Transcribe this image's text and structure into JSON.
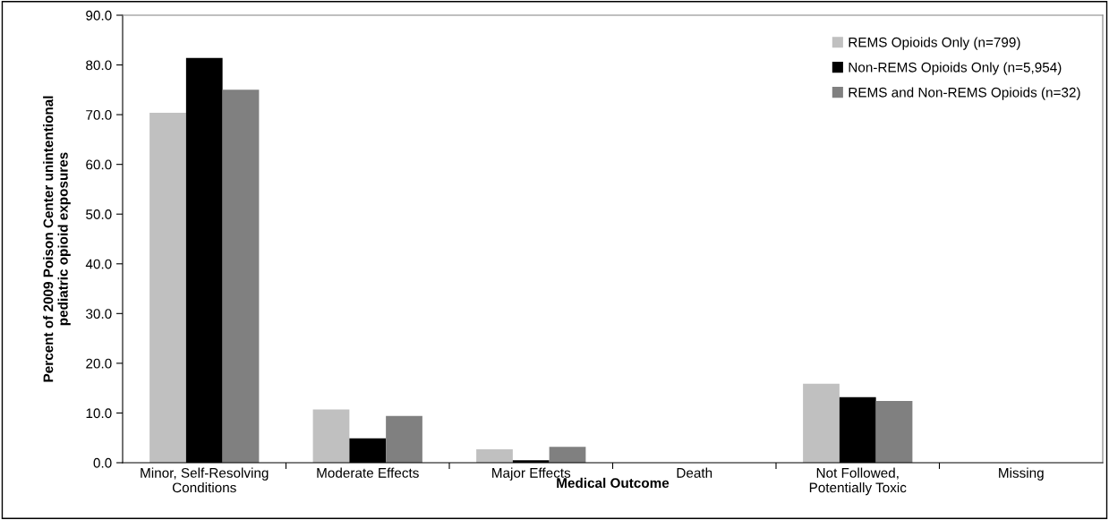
{
  "chart_data": {
    "type": "bar",
    "xlabel": "Medical Outcome",
    "ylabel": "Percent of 2009 Poison Center unintentional\npediatric opioid exposures",
    "categories": [
      "Minor, Self-Resolving\nConditions",
      "Moderate Effects",
      "Major Effects",
      "Death",
      "Not Followed,\nPotentially Toxic",
      "Missing"
    ],
    "series": [
      {
        "name": "REMS Opioids Only (n=799)",
        "color": "#c0c0c0",
        "values": [
          70.4,
          10.7,
          2.7,
          0.0,
          15.9,
          0.0
        ]
      },
      {
        "name": "Non-REMS Opioids Only (n=5,954)",
        "color": "#000000",
        "values": [
          81.4,
          4.9,
          0.5,
          0.0,
          13.2,
          0.0
        ]
      },
      {
        "name": "REMS and Non-REMS Opioids (n=32)",
        "color": "#808080",
        "values": [
          75.0,
          9.4,
          3.2,
          0.0,
          12.4,
          0.0
        ]
      }
    ],
    "ylim": [
      0,
      90
    ],
    "yticks": [
      {
        "value": 0,
        "label": "0.0"
      },
      {
        "value": 10,
        "label": "10.0"
      },
      {
        "value": 20,
        "label": "20.0"
      },
      {
        "value": 30,
        "label": "30.0"
      },
      {
        "value": 40,
        "label": "40.0"
      },
      {
        "value": 50,
        "label": "50.0"
      },
      {
        "value": 60,
        "label": "60.0"
      },
      {
        "value": 70,
        "label": "70.0"
      },
      {
        "value": 80,
        "label": "80.0"
      },
      {
        "value": 90,
        "label": "90.0"
      }
    ],
    "grid": false,
    "legend": "top right"
  }
}
